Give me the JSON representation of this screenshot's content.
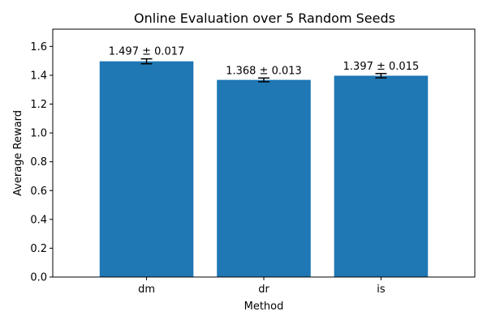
{
  "chart_data": {
    "type": "bar",
    "title": "Online Evaluation over 5 Random Seeds",
    "xlabel": "Method",
    "ylabel": "Average Reward",
    "categories": [
      "dm",
      "dr",
      "is"
    ],
    "values": [
      1.497,
      1.368,
      1.397
    ],
    "errors": [
      0.017,
      0.013,
      0.015
    ],
    "data_labels": [
      "1.497 ± 0.017",
      "1.368 ± 0.013",
      "1.397 ± 0.015"
    ],
    "ylim": [
      0,
      1.72
    ],
    "yticks": [
      0.0,
      0.2,
      0.4,
      0.6,
      0.8,
      1.0,
      1.2,
      1.4,
      1.6
    ],
    "ytick_labels": [
      "0.0",
      "0.2",
      "0.4",
      "0.6",
      "0.8",
      "1.0",
      "1.2",
      "1.4",
      "1.6"
    ],
    "grid": false,
    "bar_color": "#1f77b4",
    "error_bar_color": "#000000"
  }
}
